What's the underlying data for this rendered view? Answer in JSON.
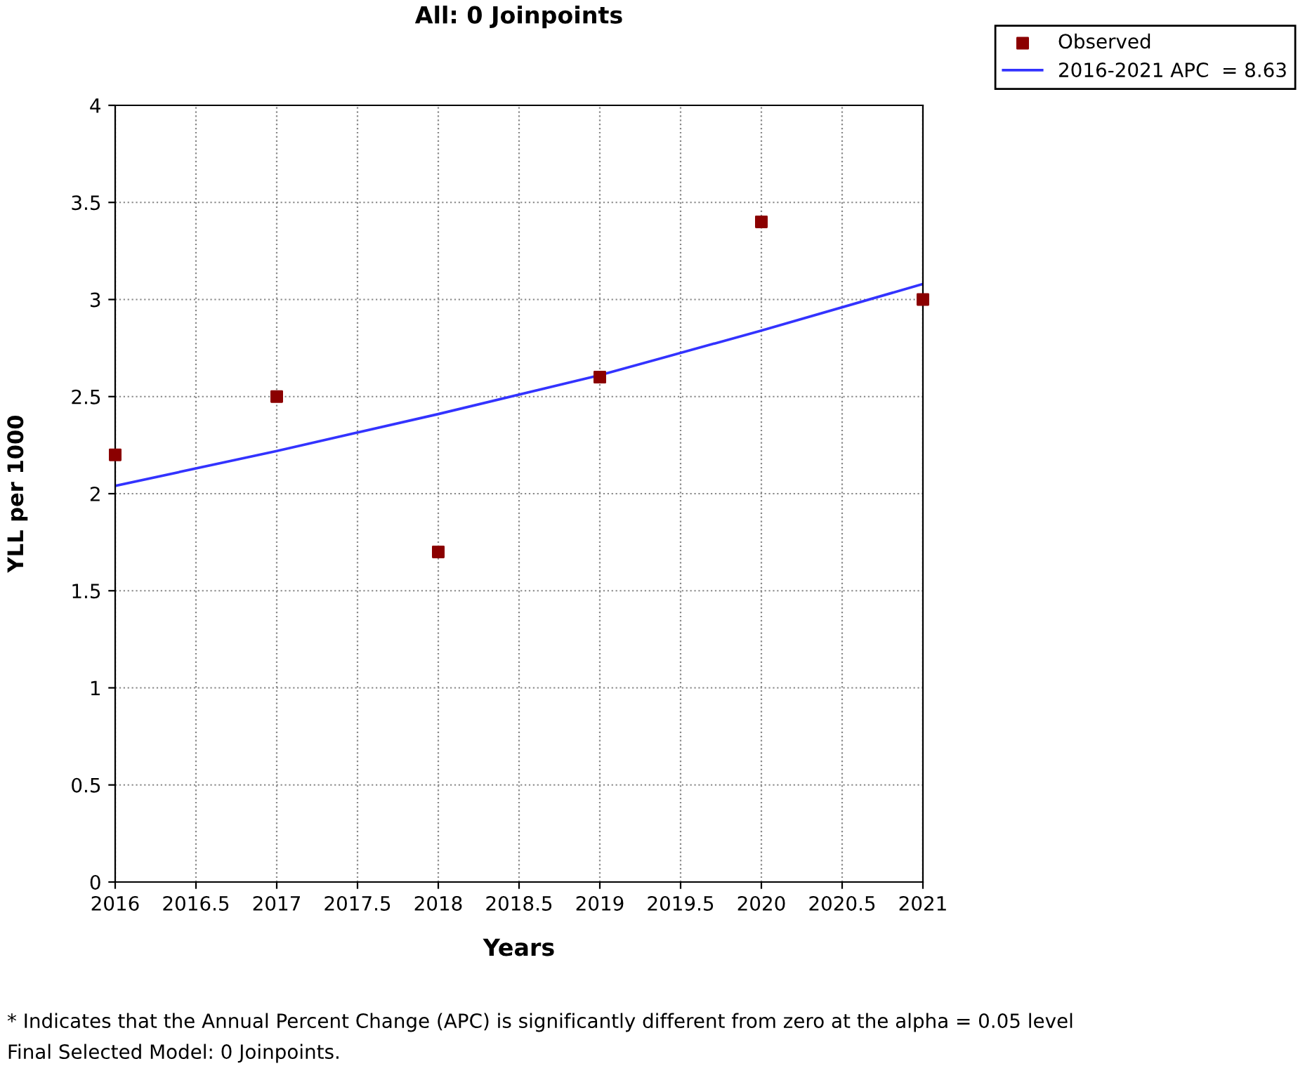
{
  "chart_data": {
    "type": "scatter",
    "title": "All: 0 Joinpoints",
    "xlabel": "Years",
    "ylabel": "YLL per 1000",
    "series": [
      {
        "name": "Observed",
        "color": "#8b0000",
        "marker": "square",
        "x": [
          2016,
          2017,
          2018,
          2019,
          2020,
          2021
        ],
        "values": [
          2.2,
          2.5,
          1.7,
          2.6,
          3.4,
          3.0
        ]
      },
      {
        "name": "2016-2021 APC  = 8.63",
        "type": "line",
        "color": "#3333ff",
        "marker": "none",
        "line_style": "solid",
        "x": [
          2016,
          2017,
          2018,
          2019,
          2020,
          2021
        ],
        "values": [
          2.04,
          2.22,
          2.41,
          2.61,
          2.84,
          3.08
        ]
      }
    ],
    "xlim": [
      2016,
      2021
    ],
    "xticks": [
      2016,
      2016.5,
      2017,
      2017.5,
      2018,
      2018.5,
      2019,
      2019.5,
      2020,
      2020.5,
      2021
    ],
    "ylim": [
      0,
      4
    ],
    "yticks": [
      0,
      0.5,
      1,
      1.5,
      2,
      2.5,
      3,
      3.5,
      4
    ],
    "grid": true,
    "legend": "top right",
    "annotations": [
      "* Indicates that the Annual Percent Change (APC) is significantly different from zero at the alpha = 0.05 level",
      "Final Selected Model: 0 Joinpoints."
    ]
  }
}
